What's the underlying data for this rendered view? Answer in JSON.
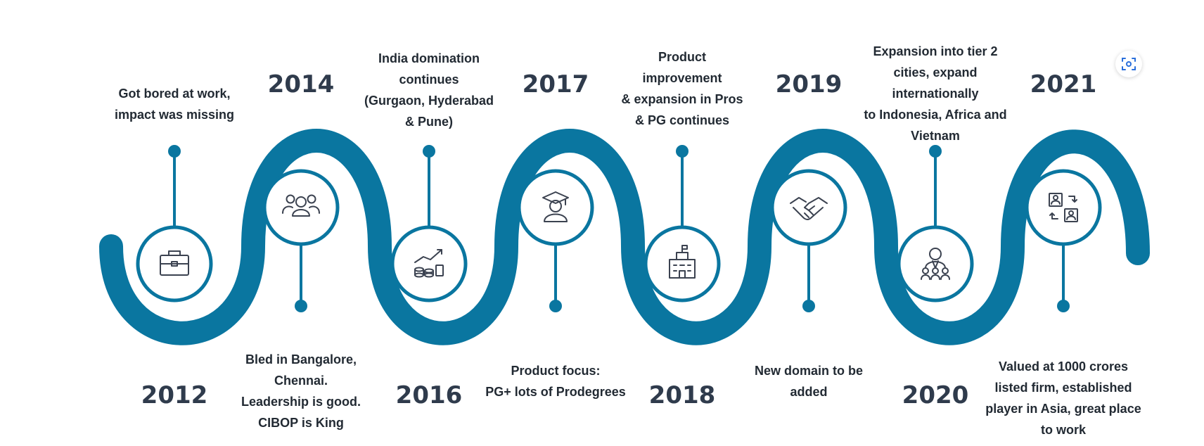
{
  "colors": {
    "wave": "#0a76a0",
    "text": "#222a33",
    "year": "#2f3b4c",
    "icon": "#3b4250",
    "background": "#ffffff"
  },
  "milestones": [
    {
      "year": "2012",
      "lines": [
        "Got bored at work,",
        "impact was missing"
      ],
      "icon": "briefcase-icon"
    },
    {
      "year": "2014",
      "lines": [
        "Bled in Bangalore,",
        "Chennai.",
        "Leadership is good.",
        "CIBOP is King"
      ],
      "icon": "team-icon"
    },
    {
      "year": "2016",
      "lines": [
        "India domination",
        "continues",
        "(Gurgaon, Hyderabad",
        "& Pune)"
      ],
      "icon": "growth-chart-icon"
    },
    {
      "year": "2017",
      "lines": [
        "Product focus:",
        "PG+ lots of Prodegrees"
      ],
      "icon": "graduate-icon"
    },
    {
      "year": "2018",
      "lines": [
        "Product",
        "improvement",
        "& expansion in Pros",
        "& PG continues"
      ],
      "icon": "building-icon"
    },
    {
      "year": "2019",
      "lines": [
        "New domain to be",
        "added"
      ],
      "icon": "handshake-icon"
    },
    {
      "year": "2020",
      "lines": [
        "Expansion into tier 2",
        "cities, expand",
        "internationally",
        "to Indonesia, Africa and",
        "Vietnam"
      ],
      "icon": "leader-group-icon"
    },
    {
      "year": "2021",
      "lines": [
        "Valued at 1000 crores",
        "listed firm, established",
        "player in Asia, great place",
        "to work"
      ],
      "icon": "exchange-icon"
    }
  ]
}
